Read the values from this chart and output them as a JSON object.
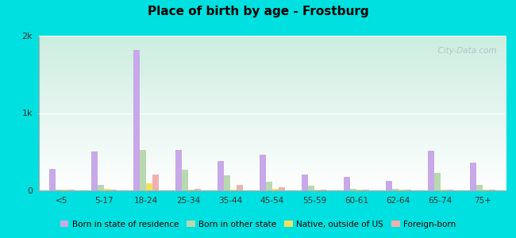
{
  "title": "Place of birth by age - Frostburg",
  "categories": [
    "<5",
    "5-17",
    "18-24",
    "25-34",
    "35-44",
    "45-54",
    "55-59",
    "60-61",
    "62-64",
    "65-74",
    "75+"
  ],
  "series": {
    "Born in state of residence": [
      280,
      500,
      1820,
      520,
      380,
      460,
      210,
      175,
      125,
      510,
      360
    ],
    "Born in other state": [
      15,
      70,
      520,
      270,
      200,
      110,
      65,
      25,
      18,
      230,
      70
    ],
    "Native, outside of US": [
      10,
      18,
      95,
      15,
      12,
      20,
      12,
      12,
      10,
      12,
      10
    ],
    "Foreign-born": [
      8,
      15,
      210,
      20,
      70,
      40,
      15,
      15,
      8,
      12,
      12
    ]
  },
  "colors": {
    "Born in state of residence": "#c8a8e8",
    "Born in other state": "#b8d8b0",
    "Native, outside of US": "#f0e060",
    "Foreign-born": "#f0b0b0"
  },
  "legend_colors": {
    "Born in state of residence": "#d0b0f0",
    "Born in other state": "#c8d8a8",
    "Native, outside of US": "#f5e878",
    "Foreign-born": "#f5c0b8"
  },
  "ylim": [
    0,
    2000
  ],
  "yticks": [
    0,
    1000,
    2000
  ],
  "ytick_labels": [
    "0",
    "1k",
    "2k"
  ],
  "outer_bg": "#00e0e0",
  "bar_width": 0.15,
  "watermark": "  City-Data.com"
}
